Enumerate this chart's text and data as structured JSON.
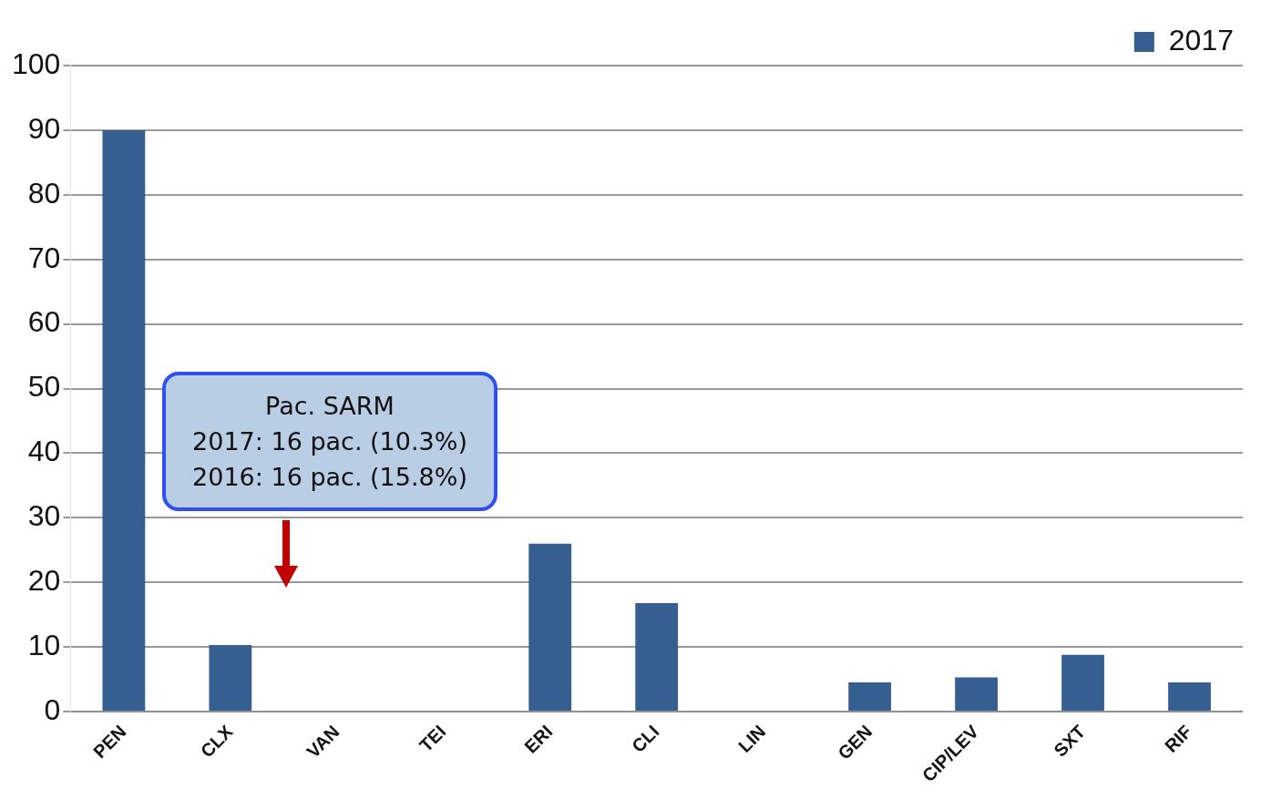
{
  "chart_data": {
    "type": "bar",
    "categories": [
      "PEN",
      "CLX",
      "VAN",
      "TEI",
      "ERI",
      "CLI",
      "LIN",
      "GEN",
      "CIP/LEV",
      "SXT",
      "RIF"
    ],
    "series": [
      {
        "name": "2017",
        "color": "#355f91",
        "values": [
          90,
          10.3,
          0,
          0,
          26,
          16.8,
          0,
          4.5,
          5.3,
          8.8,
          4.5
        ]
      }
    ],
    "ylim": [
      0,
      100
    ],
    "yticks": [
      0,
      10,
      20,
      30,
      40,
      50,
      60,
      70,
      80,
      90,
      100
    ],
    "grid": "y",
    "legend": "top right",
    "annotations": [
      "Pac. SARM\n2017: 16 pac. (10.3%)\n2016: 16 pac.  (15.8%)"
    ]
  }
}
